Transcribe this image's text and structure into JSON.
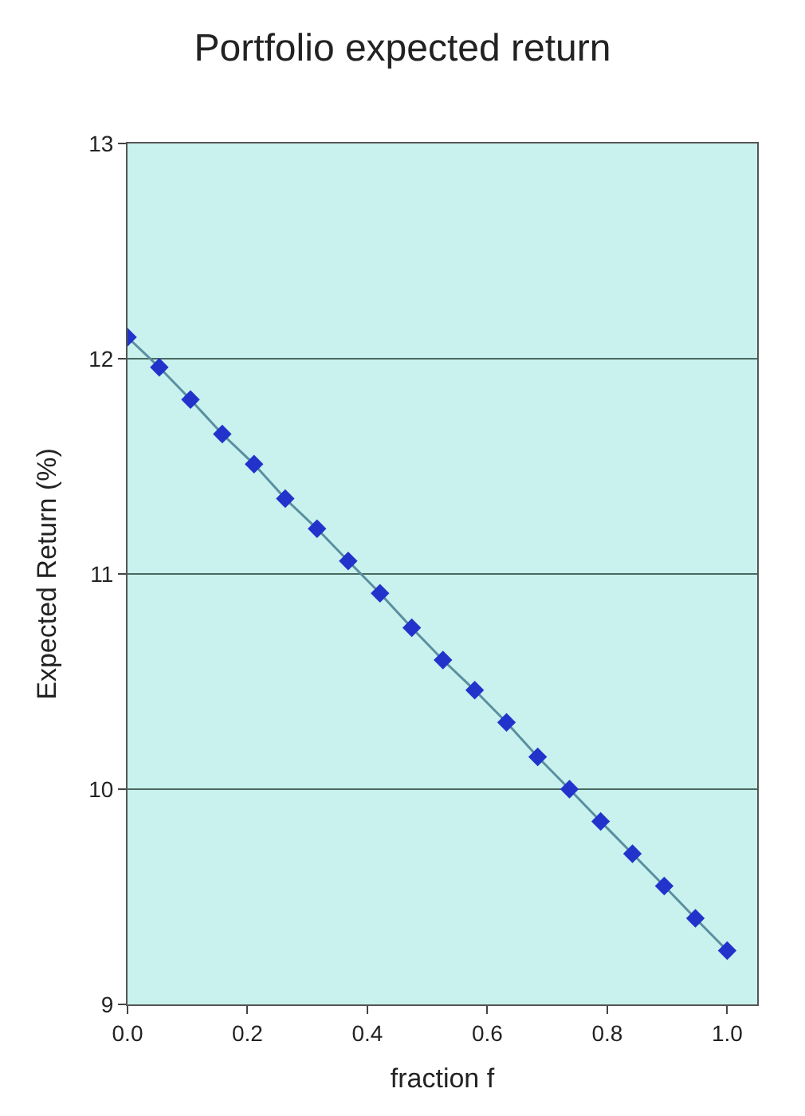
{
  "chart_data": {
    "type": "line",
    "title": "Portfolio expected return",
    "xlabel": "fraction f",
    "ylabel": "Expected Return (%)",
    "x": [
      0,
      0.053,
      0.105,
      0.158,
      0.211,
      0.263,
      0.316,
      0.368,
      0.421,
      0.474,
      0.526,
      0.579,
      0.632,
      0.684,
      0.737,
      0.789,
      0.842,
      0.895,
      0.947,
      1.0
    ],
    "series": [
      {
        "color": "#2233cc",
        "values": [
          12.1,
          11.96,
          11.81,
          11.65,
          11.51,
          11.35,
          11.21,
          11.06,
          10.91,
          10.75,
          10.6,
          10.46,
          10.31,
          10.15,
          10.0,
          9.85,
          9.7,
          9.55,
          9.4,
          9.25
        ]
      }
    ],
    "xlim": [
      0,
      1.05
    ],
    "xticks": [
      {
        "value": 0,
        "label": "0.0"
      },
      0.2,
      0.4,
      0.6,
      0.8,
      {
        "value": 1,
        "label": "1.0"
      }
    ],
    "ylim": [
      9,
      13
    ],
    "yticks": [
      9,
      10,
      11,
      12,
      13
    ],
    "grid": "y",
    "marker": "diamond",
    "line_style": "solid"
  }
}
